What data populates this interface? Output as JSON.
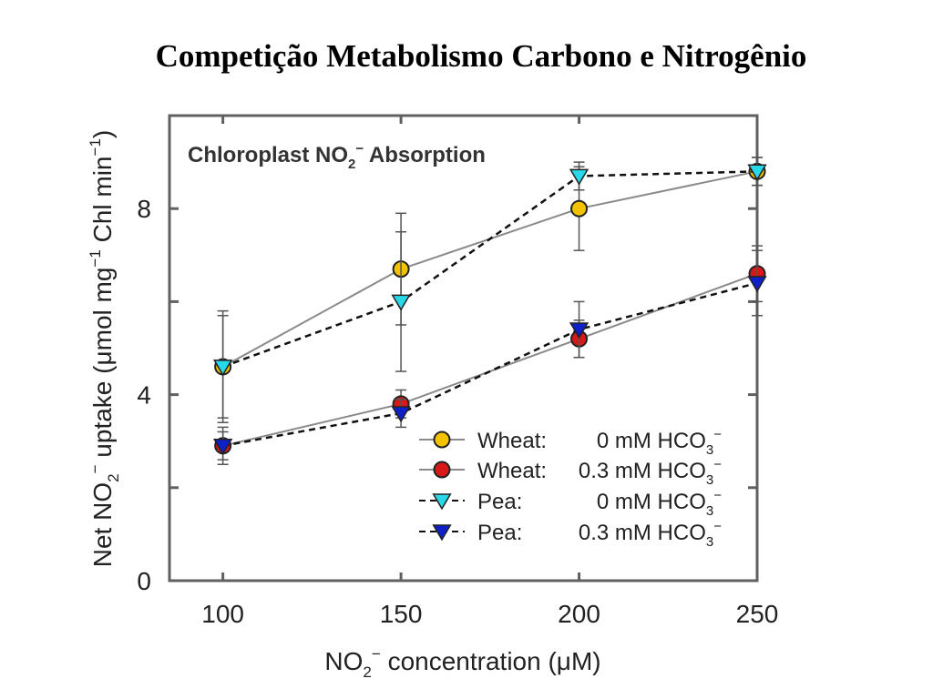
{
  "page": {
    "title": "Competição Metabolismo Carbono e Nitrogênio"
  },
  "chart_data": {
    "type": "line",
    "title": "Chloroplast NO2− Absorption",
    "xlabel": "NO2− concentration (μM)",
    "ylabel": "Net NO2− uptake (μmol mg−1 Chl min−1)",
    "x": [
      100,
      150,
      200,
      250
    ],
    "x_ticks": [
      "100",
      "150",
      "200",
      "250"
    ],
    "y_ticks": [
      "0",
      "4",
      "8"
    ],
    "xlim": [
      85,
      250
    ],
    "ylim": [
      0,
      10
    ],
    "grid": false,
    "legend_position": "bottom-right",
    "series": [
      {
        "name": "Wheat: 0 mM HCO3−",
        "legend_species": "Wheat:",
        "legend_treatment": "0 mM HCO3−",
        "values": [
          4.6,
          6.7,
          8.0,
          8.8
        ],
        "errors": [
          1.1,
          1.2,
          0.9,
          0.3
        ],
        "marker": "circle",
        "line": "solid",
        "fill": "#f3c200",
        "line_color": "#8a8a8a"
      },
      {
        "name": "Wheat: 0.3 mM HCO3−",
        "legend_species": "Wheat:",
        "legend_treatment": "0.3 mM HCO3−",
        "values": [
          2.9,
          3.8,
          5.2,
          6.6
        ],
        "errors": [
          0.4,
          0.3,
          0.4,
          0.6
        ],
        "marker": "circle",
        "line": "solid",
        "fill": "#d81818",
        "line_color": "#8a8a8a"
      },
      {
        "name": "Pea: 0 mM HCO3−",
        "legend_species": "Pea:",
        "legend_treatment": "0 mM HCO3−",
        "values": [
          4.6,
          6.0,
          8.7,
          8.8
        ],
        "errors": [
          1.2,
          1.5,
          0.3,
          0.3
        ],
        "marker": "triangle-down",
        "line": "dashed",
        "fill": "#28d8e8",
        "line_color": "#111111"
      },
      {
        "name": "Pea: 0.3 mM HCO3−",
        "legend_species": "Pea:",
        "legend_treatment": "0.3 mM HCO3−",
        "values": [
          2.9,
          3.6,
          5.4,
          6.4
        ],
        "errors": [
          0.3,
          0.3,
          0.6,
          0.7
        ],
        "marker": "triangle-down",
        "line": "dashed",
        "fill": "#1020c8",
        "line_color": "#111111"
      }
    ]
  }
}
